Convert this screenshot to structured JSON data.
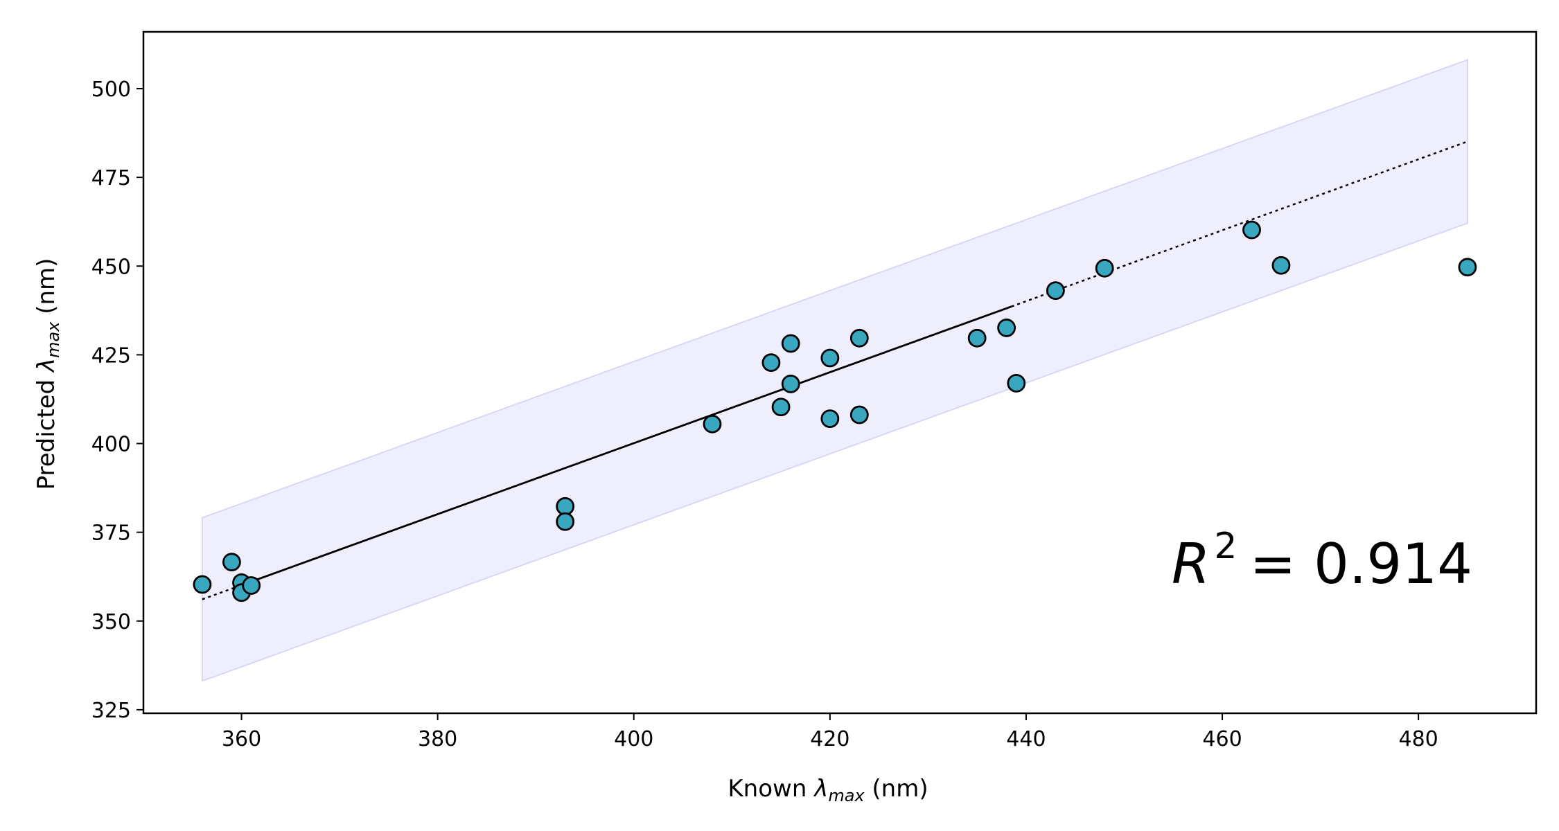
{
  "chart_data": {
    "type": "scatter",
    "x_label": "Known λmax (nm)",
    "y_label": "Predicted λmax (nm)",
    "xlim": [
      350,
      492
    ],
    "ylim": [
      324,
      516
    ],
    "x_ticks": [
      360,
      380,
      400,
      420,
      440,
      460,
      480
    ],
    "y_ticks": [
      325,
      350,
      375,
      400,
      425,
      450,
      475,
      500
    ],
    "grid": false,
    "colors": {
      "points": "#3aa7c1",
      "band": "#eeeefc",
      "band_edge": "#d8d8f6",
      "line": "#000000"
    },
    "points": [
      [
        356,
        360.3
      ],
      [
        359,
        366.6
      ],
      [
        360,
        360.8
      ],
      [
        360,
        358.0
      ],
      [
        361,
        360.0
      ],
      [
        393,
        382.3
      ],
      [
        393,
        378.0
      ],
      [
        408,
        405.5
      ],
      [
        414,
        422.8
      ],
      [
        415,
        410.3
      ],
      [
        416,
        428.2
      ],
      [
        416,
        416.8
      ],
      [
        420,
        424.1
      ],
      [
        420,
        407.0
      ],
      [
        423,
        429.7
      ],
      [
        423,
        408.1
      ],
      [
        435,
        429.7
      ],
      [
        438,
        432.6
      ],
      [
        439,
        417.0
      ],
      [
        443,
        443.1
      ],
      [
        448,
        449.4
      ],
      [
        463,
        460.2
      ],
      [
        466,
        450.2
      ],
      [
        485,
        449.7
      ]
    ],
    "fit_line": {
      "x": [
        356,
        485
      ],
      "y": [
        356.1,
        485.1
      ]
    },
    "band": {
      "x": [
        356,
        485
      ],
      "upper": [
        379.1,
        508.1
      ],
      "lower": [
        333.1,
        462.1
      ]
    },
    "annotation": {
      "prefix": "R",
      "superscript": "2",
      "value": "= 0.914"
    }
  }
}
